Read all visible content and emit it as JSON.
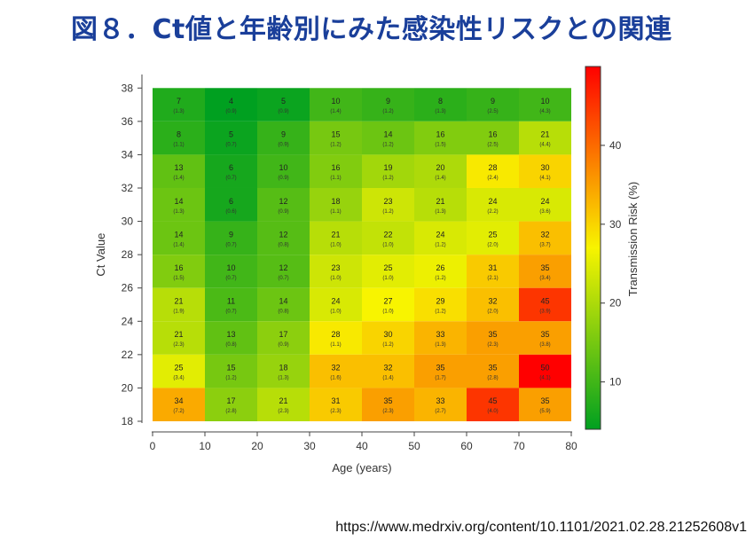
{
  "title": "図８．Ct値と年齢別にみた感染性リスクとの関連",
  "source": "https://www.medrxiv.org/content/10.1101/2021.02.28.21252608v1",
  "chart_data": {
    "type": "heatmap",
    "xlabel": "Age (years)",
    "ylabel": "Ct Value",
    "colorbar_label": "Transmission Risk (%)",
    "x_ticks": [
      0,
      10,
      20,
      30,
      40,
      50,
      60,
      70,
      80
    ],
    "y_ticks": [
      18,
      20,
      22,
      24,
      26,
      28,
      30,
      32,
      34,
      36,
      38
    ],
    "colorbar_ticks": [
      10,
      20,
      30,
      40
    ],
    "colorbar_range": [
      4,
      50
    ],
    "colorscale": [
      "#00a020",
      "#f8f400",
      "#ff0000"
    ],
    "age_bins": [
      [
        0,
        10
      ],
      [
        10,
        20
      ],
      [
        20,
        30
      ],
      [
        30,
        40
      ],
      [
        40,
        50
      ],
      [
        50,
        60
      ],
      [
        60,
        70
      ],
      [
        70,
        80
      ]
    ],
    "ct_bins": [
      [
        36,
        38
      ],
      [
        34,
        36
      ],
      [
        32,
        34
      ],
      [
        30,
        32
      ],
      [
        28,
        30
      ],
      [
        26,
        28
      ],
      [
        24,
        26
      ],
      [
        22,
        24
      ],
      [
        20,
        22
      ],
      [
        18,
        20
      ]
    ],
    "values": [
      [
        7,
        4,
        5,
        10,
        9,
        8,
        9,
        10
      ],
      [
        8,
        5,
        9,
        15,
        14,
        16,
        16,
        21
      ],
      [
        13,
        6,
        10,
        16,
        19,
        20,
        28,
        30
      ],
      [
        14,
        6,
        12,
        18,
        23,
        21,
        24,
        24
      ],
      [
        14,
        9,
        12,
        21,
        22,
        24,
        25,
        32
      ],
      [
        16,
        10,
        12,
        23,
        25,
        26,
        31,
        35
      ],
      [
        21,
        11,
        14,
        24,
        27,
        29,
        32,
        45
      ],
      [
        21,
        13,
        17,
        28,
        30,
        33,
        35,
        35
      ],
      [
        25,
        15,
        18,
        32,
        32,
        35,
        35,
        50
      ],
      [
        34,
        17,
        21,
        31,
        35,
        33,
        45,
        35
      ]
    ],
    "errors": [
      [
        "(1.3)",
        "(0.9)",
        "(0.9)",
        "(1.4)",
        "(1.2)",
        "(1.3)",
        "(2.5)",
        "(4.3)"
      ],
      [
        "(1.1)",
        "(0.7)",
        "(0.9)",
        "(1.2)",
        "(1.2)",
        "(1.5)",
        "(2.5)",
        "(4.4)"
      ],
      [
        "(1.4)",
        "(0.7)",
        "(0.9)",
        "(1.1)",
        "(1.2)",
        "(1.4)",
        "(2.4)",
        "(4.1)"
      ],
      [
        "(1.3)",
        "(0.6)",
        "(0.9)",
        "(1.1)",
        "(1.2)",
        "(1.3)",
        "(2.2)",
        "(3.6)"
      ],
      [
        "(1.4)",
        "(0.7)",
        "(0.8)",
        "(1.0)",
        "(1.0)",
        "(1.2)",
        "(2.0)",
        "(3.7)"
      ],
      [
        "(1.5)",
        "(0.7)",
        "(0.7)",
        "(1.0)",
        "(1.0)",
        "(1.2)",
        "(2.1)",
        "(3.4)"
      ],
      [
        "(1.9)",
        "(0.7)",
        "(0.8)",
        "(1.0)",
        "(1.0)",
        "(1.2)",
        "(2.0)",
        "(3.9)"
      ],
      [
        "(2.3)",
        "(0.8)",
        "(0.9)",
        "(1.1)",
        "(1.2)",
        "(1.3)",
        "(2.3)",
        "(3.8)"
      ],
      [
        "(3.4)",
        "(1.2)",
        "(1.3)",
        "(1.6)",
        "(1.4)",
        "(1.7)",
        "(2.8)",
        "(4.1)"
      ],
      [
        "(7.2)",
        "(2.8)",
        "(2.3)",
        "(2.3)",
        "(2.3)",
        "(2.7)",
        "(4.0)",
        "(5.9)"
      ]
    ]
  }
}
